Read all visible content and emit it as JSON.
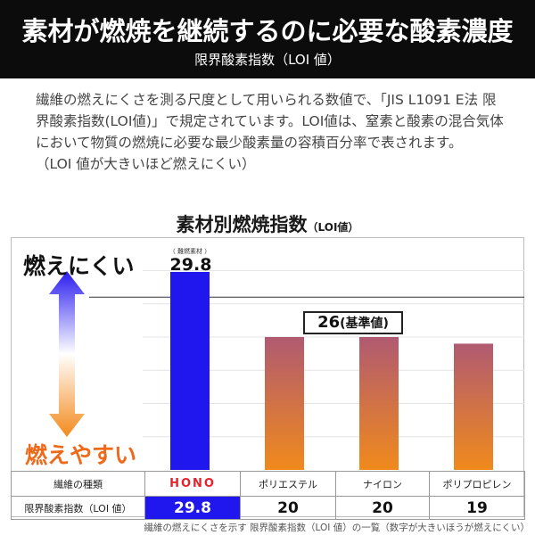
{
  "header": {
    "title": "素材が燃焼を継続するのに必要な酸素濃度",
    "subtitle": "限界酸素指数（LOI 値）"
  },
  "description": {
    "lines": [
      "繊維の燃えにくさを測る尺度として用いられる数値で、「JIS L1091 E法 限",
      "界酸素指数(LOI値)」で規定されています。LOI値は、窒素と酸素の混合気体",
      "において物質の燃焼に必要な最少酸素量の容積百分率で表されます。",
      "（LOI 値が大きいほど燃えにくい）"
    ]
  },
  "side_labels": {
    "top": "燃えにくい",
    "bottom": "燃えやすい"
  },
  "colors": {
    "hono_bar": "#1f17ee",
    "other_bar_top": "#b05a72",
    "other_bar_bottom": "#f08a1c",
    "hono_text": "#e8212a"
  },
  "chart_data": {
    "type": "bar",
    "title": "素材別燃焼指数",
    "title_unit": "（LOI値）",
    "categories": [
      "HONO",
      "ポリエステル",
      "ナイロン",
      "ポリプロピレン"
    ],
    "values": [
      29.8,
      20,
      20,
      19
    ],
    "ylim": [
      0,
      31
    ],
    "gridlines": [
      5,
      10,
      15,
      20,
      25,
      30
    ],
    "reference_line": {
      "value": 26,
      "value_label": "26",
      "label": "(基準値)"
    },
    "annotations": [
      {
        "category": "HONO",
        "note": "（ 難燃素材 ）",
        "value_label": "29.8"
      }
    ]
  },
  "table": {
    "header_label": "繊維の種類",
    "row_label": "限界酸素指数（LOI 値）",
    "columns": [
      "HONO",
      "ポリエステル",
      "ナイロン",
      "ポリプロピレン"
    ],
    "values": [
      "29.8",
      "20",
      "20",
      "19"
    ]
  },
  "footnote": "繊維の燃えにくさを示す 限界酸素指数（LOI 値）の一覧（数字が大きいほうが燃えにくい）"
}
